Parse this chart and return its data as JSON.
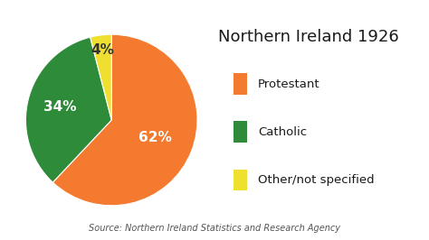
{
  "title": "Northern Ireland 1926",
  "labels": [
    "Protestant",
    "Catholic",
    "Other/not specified"
  ],
  "values": [
    62,
    34,
    4
  ],
  "colors": [
    "#F47A30",
    "#2E8B3A",
    "#EFE030"
  ],
  "pct_labels": [
    "62%",
    "34%",
    "4%"
  ],
  "source_text": "Source: Northern Ireland Statistics and Research Agency",
  "background_color": "#FFFFFF",
  "title_fontsize": 13,
  "legend_fontsize": 9.5,
  "pct_fontsize": 11,
  "source_fontsize": 7,
  "startangle": 90,
  "legend_labels": [
    "Protestant",
    "Catholic",
    "Other/not specified"
  ],
  "pct_colors": [
    "white",
    "white",
    "#333333"
  ],
  "pct_radii": [
    0.55,
    0.62,
    0.82
  ]
}
